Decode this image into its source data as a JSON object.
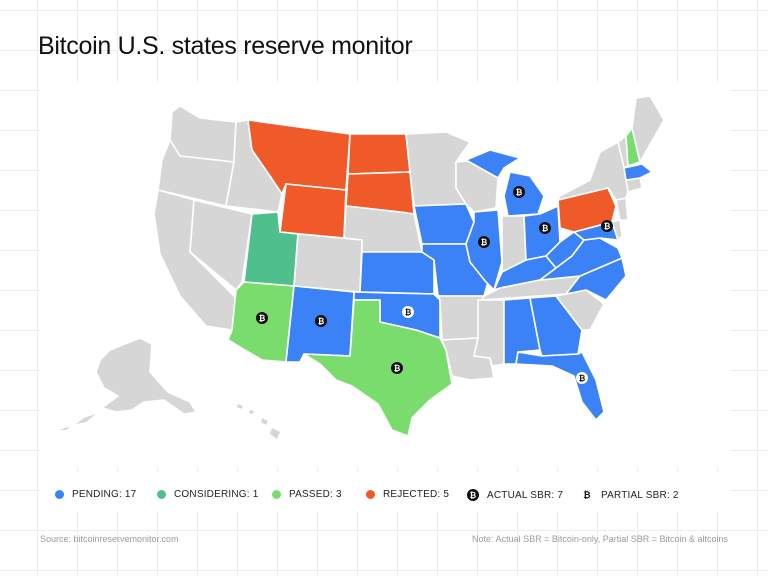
{
  "title": "Bitcoin U.S. states reserve monitor",
  "colors": {
    "pending": "#3b82f6",
    "considering": "#4fbf8e",
    "passed": "#79dc6c",
    "rejected": "#f05a28",
    "none": "#d6d6d6",
    "badge": "#111111"
  },
  "legend": {
    "pending": "PENDING: 17",
    "considering": "CONSIDERING: 1",
    "passed": "PASSED: 3",
    "rejected": "REJECTED: 5",
    "actual": "ACTUAL SBR: 7",
    "partial": "PARTIAL SBR: 2"
  },
  "bitcoin_symbol": "₿",
  "footer": {
    "source": "Source: bitcoinreservemonitor.com",
    "note": "Note: Actual SBR = Bitcoin-only, Partial SBR = Bitcoin & altcoins"
  },
  "map_data": {
    "pending": [
      "Iowa",
      "Missouri",
      "Illinois",
      "Michigan",
      "Ohio",
      "Kentucky",
      "West Virginia",
      "Virginia",
      "North Carolina",
      "Maryland",
      "Massachusetts",
      "Kansas",
      "Oklahoma",
      "New Mexico",
      "Alabama",
      "Georgia",
      "Florida"
    ],
    "considering": [
      "Utah"
    ],
    "passed": [
      "Arizona",
      "Texas",
      "New Hampshire"
    ],
    "rejected": [
      "Montana",
      "Wyoming",
      "North Dakota",
      "South Dakota",
      "Pennsylvania"
    ],
    "actual_sbr": [
      "Arizona",
      "New Mexico",
      "Texas",
      "Illinois",
      "Michigan",
      "Ohio",
      "Maryland"
    ],
    "partial_sbr": [
      "Oklahoma",
      "Florida"
    ]
  }
}
